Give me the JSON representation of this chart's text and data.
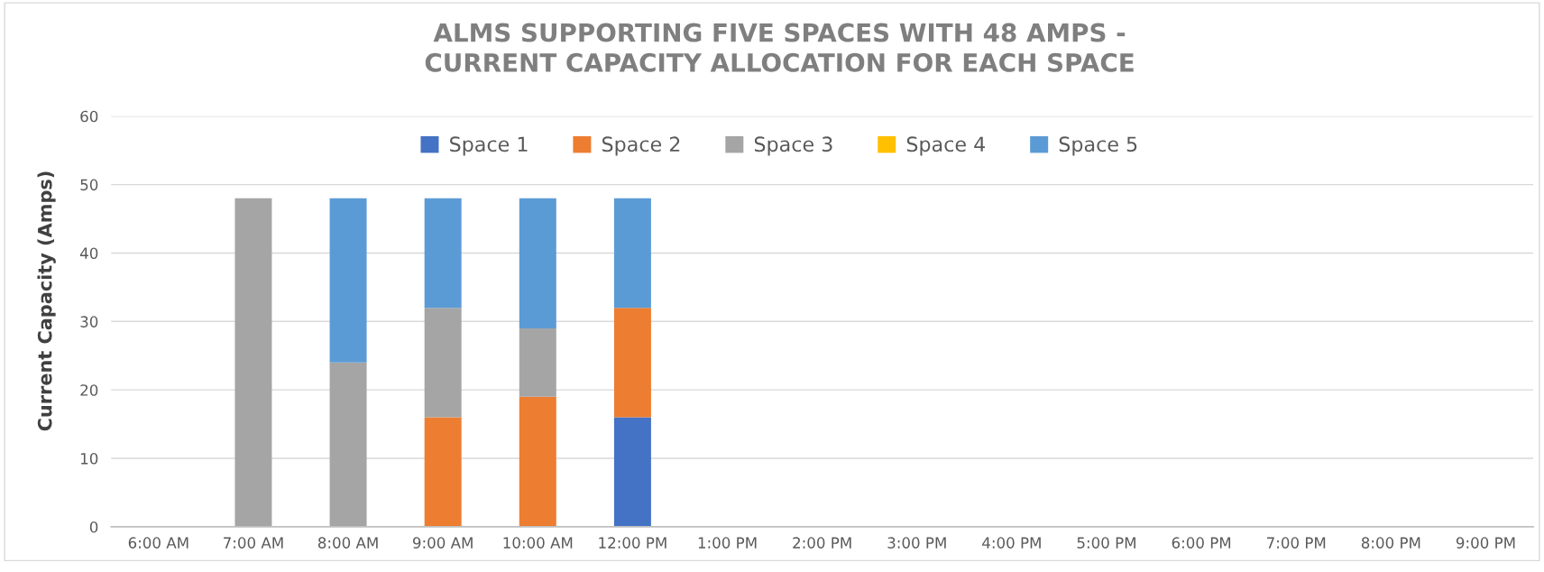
{
  "chart_data": {
    "type": "bar",
    "stacked": true,
    "title": "ALMS SUPPORTING FIVE SPACES WITH 48 AMPS -\nCURRENT CAPACITY ALLOCATION FOR EACH SPACE",
    "ylabel": "Current Capacity (Amps)",
    "categories": [
      "6:00 AM",
      "7:00 AM",
      "8:00 AM",
      "9:00 AM",
      "10:00 AM",
      "12:00 PM",
      "1:00 PM",
      "2:00 PM",
      "3:00 PM",
      "4:00 PM",
      "5:00 PM",
      "6:00 PM",
      "7:00 PM",
      "8:00 PM",
      "9:00 PM"
    ],
    "series": [
      {
        "name": "Space 1",
        "color": "#4472c4",
        "values": [
          0,
          0,
          0,
          0,
          0,
          16,
          0,
          0,
          0,
          0,
          0,
          0,
          0,
          0,
          0
        ]
      },
      {
        "name": "Space 2",
        "color": "#ed7d31",
        "values": [
          0,
          0,
          0,
          16,
          19,
          16,
          0,
          0,
          0,
          0,
          0,
          0,
          0,
          0,
          0
        ]
      },
      {
        "name": "Space 3",
        "color": "#a5a5a5",
        "values": [
          0,
          48,
          24,
          16,
          10,
          0,
          0,
          0,
          0,
          0,
          0,
          0,
          0,
          0,
          0
        ]
      },
      {
        "name": "Space 4",
        "color": "#ffc000",
        "values": [
          0,
          0,
          0,
          0,
          0,
          0,
          0,
          0,
          0,
          0,
          0,
          0,
          0,
          0,
          0
        ]
      },
      {
        "name": "Space 5",
        "color": "#5b9bd5",
        "values": [
          0,
          0,
          24,
          16,
          19,
          16,
          0,
          0,
          0,
          0,
          0,
          0,
          0,
          0,
          0
        ]
      }
    ],
    "ylim": [
      0,
      60
    ],
    "yticks": [
      0,
      10,
      20,
      30,
      40,
      50,
      60
    ],
    "grid": "y",
    "legend": "top"
  }
}
